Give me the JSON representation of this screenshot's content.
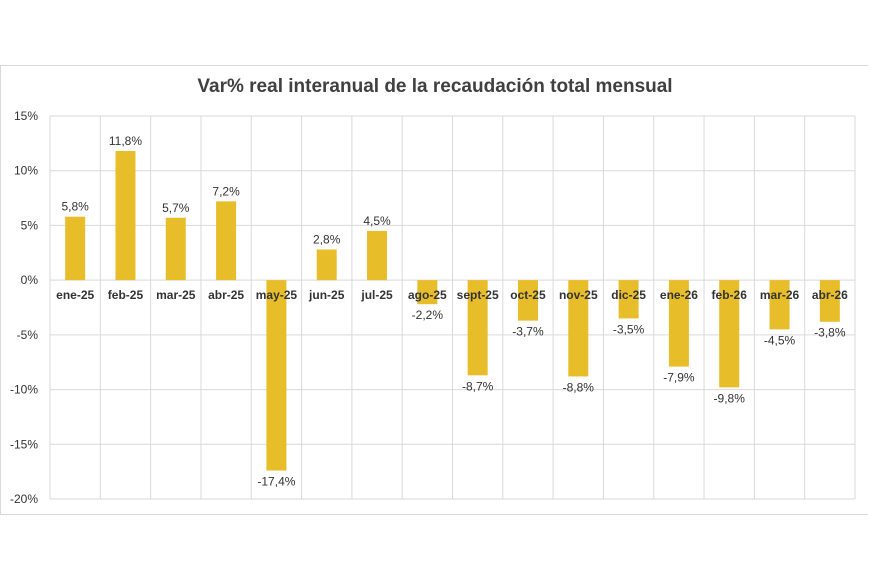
{
  "chart_data": {
    "type": "bar",
    "title": "Var% real interanual de la recaudación total mensual",
    "categories": [
      "ene-25",
      "feb-25",
      "mar-25",
      "abr-25",
      "may-25",
      "jun-25",
      "jul-25",
      "ago-25",
      "sept-25",
      "oct-25",
      "nov-25",
      "dic-25",
      "ene-26",
      "feb-26",
      "mar-26",
      "abr-26"
    ],
    "values": [
      5.8,
      11.8,
      5.7,
      7.2,
      -17.4,
      2.8,
      4.5,
      -2.2,
      -8.7,
      -3.7,
      -8.8,
      -3.5,
      -7.9,
      -9.8,
      -4.5,
      -3.8
    ],
    "data_labels": [
      "5,8%",
      "11,8%",
      "5,7%",
      "7,2%",
      "-17,4%",
      "2,8%",
      "4,5%",
      "-2,2%",
      "-8,7%",
      "-3,7%",
      "-8,8%",
      "-3,5%",
      "-7,9%",
      "-9,8%",
      "-4,5%",
      "-3,8%"
    ],
    "yticks": [
      15,
      10,
      5,
      0,
      -5,
      -10,
      -15,
      -20
    ],
    "ytick_labels": [
      "15%",
      "10%",
      "5%",
      "0%",
      "-5%",
      "-10%",
      "-15%",
      "-20%"
    ],
    "ylim": [
      -20,
      15
    ],
    "grid": true,
    "bar_color": "#E8BD2A",
    "grid_color": "#d9d9d9"
  }
}
